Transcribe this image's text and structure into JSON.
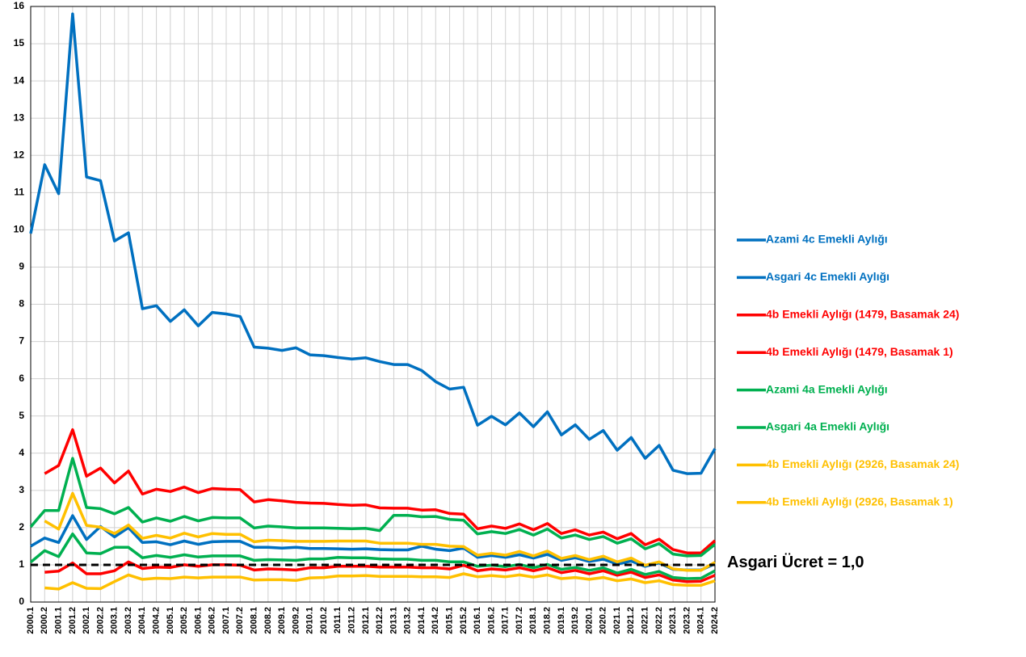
{
  "chart_data": {
    "type": "line",
    "categories": [
      "2000.1",
      "2000.2",
      "2001.1",
      "2001.2",
      "2002.1",
      "2002.2",
      "2003.1",
      "2003.2",
      "2004.1",
      "2004.2",
      "2005.1",
      "2005.2",
      "2006.1",
      "2006.2",
      "2007.1",
      "2007.2",
      "2008.1",
      "2008.2",
      "2009.1",
      "2009.2",
      "2010.1",
      "2010.2",
      "2011.1",
      "2011.2",
      "2012.1",
      "2012.2",
      "2013.1",
      "2013.2",
      "2014.1",
      "2014.2",
      "2015.1",
      "2015.2",
      "2016.1",
      "2016.2",
      "2017.1",
      "2017.2",
      "2018.1",
      "2018.2",
      "2019.1",
      "2019.2",
      "2020.1",
      "2020.2",
      "2021.1",
      "2021.2",
      "2022.1",
      "2022.2",
      "2023.1",
      "2023.2",
      "2024.1",
      "2024.2"
    ],
    "series": [
      {
        "name": "Azami 4c Emekli Aylığı",
        "color": "#0070c0",
        "values": [
          9.9,
          11.75,
          10.97,
          15.8,
          11.42,
          11.32,
          9.7,
          9.92,
          7.88,
          7.96,
          7.54,
          7.85,
          7.42,
          7.78,
          7.74,
          7.67,
          6.85,
          6.82,
          6.76,
          6.83,
          6.64,
          6.62,
          6.57,
          6.53,
          6.56,
          6.46,
          6.38,
          6.38,
          6.22,
          5.92,
          5.72,
          5.77,
          4.75,
          4.99,
          4.76,
          5.08,
          4.71,
          5.11,
          4.49,
          4.76,
          4.37,
          4.61,
          4.08,
          4.42,
          3.86,
          4.21,
          3.54,
          3.45,
          3.46,
          4.12
        ]
      },
      {
        "name": "Asgari 4c Emekli Aylığı",
        "color": "#0070c0",
        "values": [
          1.5,
          1.72,
          1.6,
          2.32,
          1.68,
          2.03,
          1.75,
          2.0,
          1.6,
          1.62,
          1.54,
          1.64,
          1.55,
          1.62,
          1.63,
          1.63,
          1.47,
          1.47,
          1.45,
          1.47,
          1.44,
          1.44,
          1.43,
          1.42,
          1.43,
          1.41,
          1.4,
          1.4,
          1.5,
          1.42,
          1.38,
          1.45,
          1.2,
          1.25,
          1.2,
          1.27,
          1.18,
          1.28,
          1.12,
          1.19,
          1.09,
          1.15,
          1.02,
          1.1,
          0.96,
          1.05,
          0.88,
          0.86,
          0.86,
          1.03
        ]
      },
      {
        "name": "4b Emekli Aylığı (1479, Basamak 24)",
        "color": "#ff0000",
        "values": [
          null,
          3.45,
          3.67,
          4.63,
          3.38,
          3.6,
          3.2,
          3.52,
          2.9,
          3.03,
          2.97,
          3.09,
          2.94,
          3.05,
          3.03,
          3.02,
          2.69,
          2.75,
          2.72,
          2.68,
          2.66,
          2.65,
          2.62,
          2.6,
          2.61,
          2.53,
          2.52,
          2.52,
          2.47,
          2.48,
          2.38,
          2.36,
          1.97,
          2.04,
          1.98,
          2.1,
          1.94,
          2.11,
          1.84,
          1.94,
          1.8,
          1.88,
          1.7,
          1.84,
          1.54,
          1.69,
          1.41,
          1.32,
          1.32,
          1.65
        ]
      },
      {
        "name": "4b Emekli Aylığı (1479, Basamak 1)",
        "color": "#ff0000",
        "values": [
          null,
          0.8,
          0.83,
          1.05,
          0.76,
          0.76,
          0.84,
          1.08,
          0.9,
          0.94,
          0.93,
          1.0,
          0.96,
          1.0,
          1.0,
          0.99,
          0.86,
          0.89,
          0.88,
          0.86,
          0.92,
          0.92,
          0.96,
          0.96,
          0.96,
          0.94,
          0.94,
          0.94,
          0.92,
          0.92,
          0.89,
          0.99,
          0.84,
          0.89,
          0.86,
          0.92,
          0.84,
          0.92,
          0.79,
          0.85,
          0.76,
          0.84,
          0.72,
          0.8,
          0.66,
          0.73,
          0.59,
          0.55,
          0.56,
          0.72
        ]
      },
      {
        "name": "Azami 4a Emekli Aylığı",
        "color": "#00b050",
        "values": [
          2.02,
          2.46,
          2.46,
          3.86,
          2.54,
          2.51,
          2.37,
          2.54,
          2.15,
          2.26,
          2.17,
          2.3,
          2.18,
          2.27,
          2.26,
          2.26,
          1.99,
          2.04,
          2.02,
          1.99,
          1.99,
          1.99,
          1.98,
          1.97,
          1.98,
          1.92,
          2.33,
          2.33,
          2.29,
          2.3,
          2.22,
          2.2,
          1.83,
          1.89,
          1.84,
          1.95,
          1.8,
          1.96,
          1.72,
          1.8,
          1.68,
          1.76,
          1.58,
          1.7,
          1.43,
          1.57,
          1.29,
          1.24,
          1.25,
          1.55
        ]
      },
      {
        "name": "Asgari 4a Emekli Aylığı",
        "color": "#00b050",
        "values": [
          1.07,
          1.38,
          1.22,
          1.83,
          1.32,
          1.3,
          1.47,
          1.47,
          1.19,
          1.25,
          1.2,
          1.27,
          1.21,
          1.24,
          1.24,
          1.24,
          1.12,
          1.14,
          1.13,
          1.12,
          1.16,
          1.16,
          1.2,
          1.19,
          1.19,
          1.16,
          1.15,
          1.15,
          1.12,
          1.12,
          1.08,
          1.08,
          0.96,
          0.99,
          0.95,
          1.01,
          0.92,
          1.01,
          0.88,
          0.93,
          0.85,
          0.92,
          0.78,
          0.88,
          0.74,
          0.82,
          0.66,
          0.63,
          0.64,
          0.84
        ]
      },
      {
        "name": "4b Emekli Aylığı (2926, Basamak 24)",
        "color": "#ffc000",
        "values": [
          null,
          2.18,
          1.96,
          2.92,
          2.06,
          2.01,
          1.84,
          2.07,
          1.71,
          1.79,
          1.72,
          1.85,
          1.75,
          1.84,
          1.82,
          1.82,
          1.62,
          1.66,
          1.65,
          1.63,
          1.63,
          1.63,
          1.64,
          1.64,
          1.64,
          1.58,
          1.58,
          1.58,
          1.55,
          1.55,
          1.5,
          1.49,
          1.26,
          1.31,
          1.26,
          1.36,
          1.24,
          1.37,
          1.17,
          1.25,
          1.14,
          1.23,
          1.08,
          1.18,
          0.99,
          1.08,
          0.89,
          0.85,
          0.85,
          1.07
        ]
      },
      {
        "name": "4b Emekli Aylığı (2926, Basamak 1)",
        "color": "#ffc000",
        "values": [
          null,
          0.38,
          0.35,
          0.52,
          0.37,
          0.36,
          0.55,
          0.73,
          0.61,
          0.64,
          0.63,
          0.67,
          0.65,
          0.67,
          0.67,
          0.67,
          0.59,
          0.6,
          0.6,
          0.58,
          0.65,
          0.66,
          0.7,
          0.7,
          0.71,
          0.69,
          0.69,
          0.69,
          0.68,
          0.68,
          0.66,
          0.76,
          0.68,
          0.71,
          0.68,
          0.73,
          0.67,
          0.73,
          0.63,
          0.66,
          0.61,
          0.66,
          0.57,
          0.62,
          0.52,
          0.57,
          0.47,
          0.45,
          0.45,
          0.57
        ]
      }
    ],
    "ylim": [
      0,
      16
    ],
    "yticks": [
      0,
      1,
      2,
      3,
      4,
      5,
      6,
      7,
      8,
      9,
      10,
      11,
      12,
      13,
      14,
      15,
      16
    ],
    "grid": true,
    "legend": "right",
    "reference_line": {
      "value": 1,
      "label": "Asgari Ücret = 1,0",
      "color": "#000000"
    }
  }
}
